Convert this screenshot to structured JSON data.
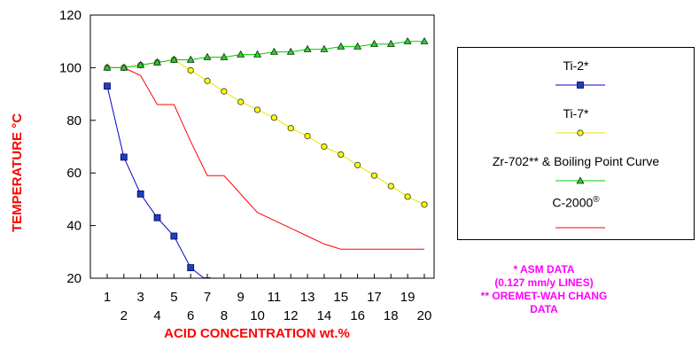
{
  "chart_data": {
    "type": "line",
    "xlabel": "ACID CONCENTRATION  wt.%",
    "ylabel": "TEMPERATURE  °C",
    "xlim": [
      0.5,
      20.5
    ],
    "ylim": [
      20,
      120
    ],
    "x_ticks_upper": [
      "1",
      "3",
      "5",
      "7",
      "9",
      "11",
      "13",
      "15",
      "17",
      "19"
    ],
    "x_ticks_lower": [
      "2",
      "4",
      "6",
      "8",
      "10",
      "12",
      "14",
      "16",
      "18",
      "20"
    ],
    "y_ticks": [
      "20",
      "40",
      "60",
      "80",
      "100",
      "120"
    ],
    "grid": false,
    "legend_position": "right",
    "series": [
      {
        "name": "Ti-2*",
        "color": "#0000cc",
        "marker": "square",
        "marker_fill": "#1f3fb5",
        "x": [
          1,
          2,
          3,
          4,
          5,
          6,
          7
        ],
        "y": [
          93,
          66,
          52,
          43,
          36,
          24,
          19
        ]
      },
      {
        "name": "Ti-7*",
        "color": "#e6e600",
        "marker": "circle",
        "marker_fill": "#ffff00",
        "x": [
          1,
          2,
          3,
          4,
          5,
          6,
          7,
          8,
          9,
          10,
          11,
          12,
          13,
          14,
          15,
          16,
          17,
          18,
          19,
          20
        ],
        "y": [
          100,
          100,
          101,
          102,
          103,
          99,
          95,
          91,
          87,
          84,
          81,
          77,
          74,
          70,
          67,
          63,
          59,
          55,
          51,
          48
        ]
      },
      {
        "name": "Zr-702** & Boiling Point Curve",
        "color": "#00cc00",
        "marker": "triangle",
        "marker_fill": "#33cc33",
        "x": [
          1,
          2,
          3,
          4,
          5,
          6,
          7,
          8,
          9,
          10,
          11,
          12,
          13,
          14,
          15,
          16,
          17,
          18,
          19,
          20
        ],
        "y": [
          100,
          100,
          101,
          102,
          103,
          103,
          104,
          104,
          105,
          105,
          106,
          106,
          107,
          107,
          108,
          108,
          109,
          109,
          110,
          110
        ]
      },
      {
        "name": "C-2000",
        "name_mark": "®",
        "color": "#ff0000",
        "marker": "none",
        "x": [
          1,
          2,
          3,
          4,
          5,
          6,
          7,
          8,
          9,
          10,
          11,
          12,
          13,
          14,
          15,
          16,
          17,
          18,
          19,
          20
        ],
        "y": [
          100,
          100,
          97,
          86,
          86,
          72,
          59,
          59,
          52,
          45,
          42,
          39,
          36,
          33,
          31,
          31,
          31,
          31,
          31,
          31
        ]
      }
    ]
  },
  "notes": {
    "line1": "* ASM DATA",
    "line2": "(0.127 mm/y LINES)",
    "line3": "** OREMET-WAH CHANG",
    "line4": "DATA"
  }
}
